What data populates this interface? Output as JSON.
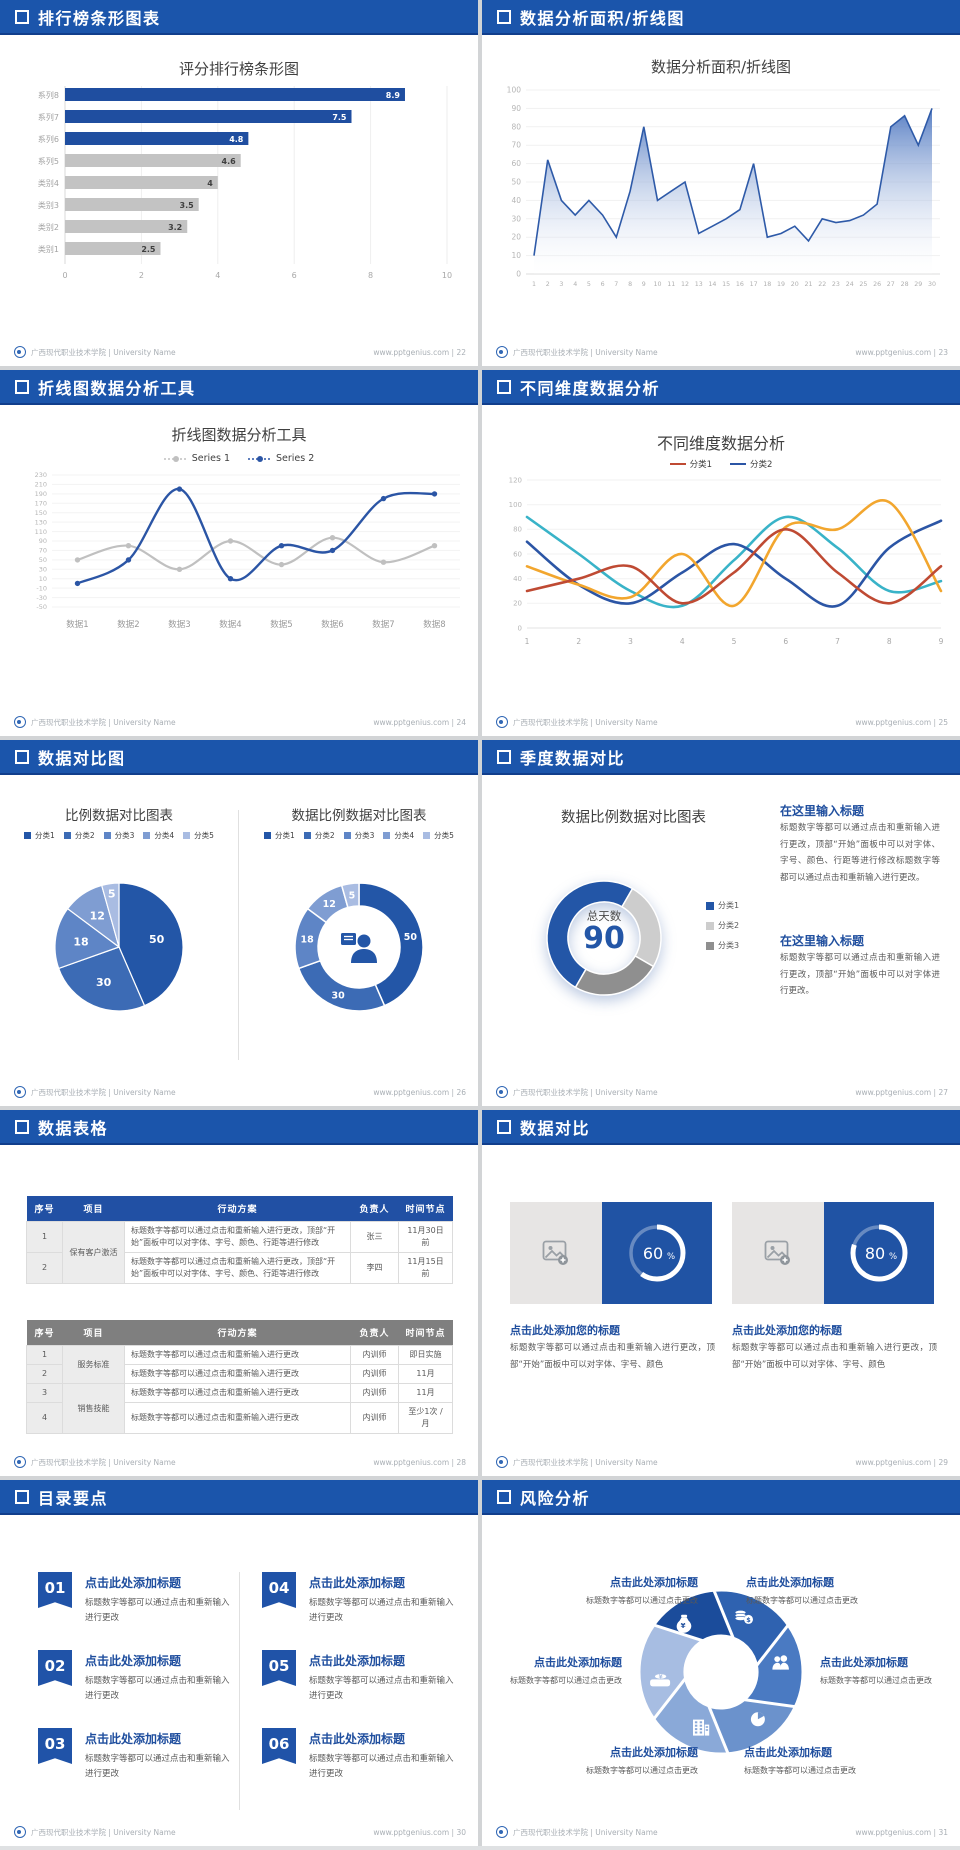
{
  "footer": {
    "org": "广西现代职业技术学院 | University Name",
    "site": "www.pptgenius.com"
  },
  "slides": [
    {
      "header": "排行榜条形图表",
      "page": "22",
      "chart_data": {
        "type": "bar",
        "orientation": "horizontal",
        "title": "评分排行榜条形图",
        "categories": [
          "系列8",
          "系列7",
          "系列6",
          "系列5",
          "类别4",
          "类别3",
          "类别2",
          "类别1"
        ],
        "values": [
          8.9,
          7.5,
          4.8,
          4.6,
          4,
          3.5,
          3.2,
          2.5
        ],
        "bar_colors": [
          "#1f4ea0",
          "#1f4ea0",
          "#1f4ea0",
          "#c3c3c3",
          "#c3c3c3",
          "#c3c3c3",
          "#c3c3c3",
          "#c3c3c3"
        ],
        "xlim": [
          0,
          10
        ],
        "xticks": [
          0,
          2,
          4,
          6,
          8,
          10
        ],
        "grid": true
      }
    },
    {
      "header": "数据分析面积/折线图",
      "page": "23",
      "chart_data": {
        "type": "area",
        "title": "数据分析面积/折线图",
        "x": [
          1,
          2,
          3,
          4,
          5,
          6,
          7,
          8,
          9,
          10,
          11,
          12,
          13,
          14,
          15,
          16,
          17,
          18,
          19,
          20,
          21,
          22,
          23,
          24,
          25,
          26,
          27,
          28,
          29,
          30
        ],
        "values": [
          10,
          62,
          40,
          32,
          40,
          32,
          20,
          45,
          80,
          40,
          45,
          50,
          22,
          26,
          30,
          35,
          60,
          20,
          22,
          26,
          18,
          30,
          28,
          29,
          32,
          38,
          80,
          86,
          70,
          90
        ],
        "ylim": [
          0,
          100
        ],
        "ytick_step": 10,
        "line_color": "#2e5aa8",
        "fill_top": "#4a74bf",
        "grid": true
      }
    },
    {
      "header": "折线图数据分析工具",
      "page": "24",
      "chart_data": {
        "type": "line",
        "title": "折线图数据分析工具",
        "categories": [
          "数据1",
          "数据2",
          "数据3",
          "数据4",
          "数据5",
          "数据6",
          "数据7",
          "数据8"
        ],
        "series": [
          {
            "name": "Series 1",
            "color": "#c0c0c0",
            "values": [
              50,
              80,
              30,
              90,
              40,
              97,
              45,
              80
            ]
          },
          {
            "name": "Series 2",
            "color": "#2b55a5",
            "values": [
              0,
              50,
              200,
              10,
              80,
              70,
              180,
              190
            ]
          }
        ],
        "ylim": [
          -50,
          230
        ],
        "ytick_step": 20,
        "markers": true,
        "legend_position": "top"
      }
    },
    {
      "header": "不同维度数据分析",
      "page": "25",
      "chart_data": {
        "type": "line",
        "title": "不同维度数据分析",
        "x": [
          1,
          2,
          3,
          4,
          5,
          6,
          7,
          8,
          9
        ],
        "legend": [
          {
            "name": "分类1",
            "color": "#bf4a33"
          },
          {
            "name": "分类2",
            "color": "#2b55a5"
          }
        ],
        "series": [
          {
            "name": "teal",
            "color": "#39b3c8",
            "values": [
              90,
              60,
              30,
              18,
              55,
              90,
              65,
              30,
              38
            ]
          },
          {
            "name": "navy",
            "color": "#2b55a5",
            "values": [
              70,
              35,
              20,
              45,
              68,
              40,
              18,
              65,
              87
            ]
          },
          {
            "name": "orange",
            "color": "#f2a62e",
            "values": [
              50,
              35,
              25,
              60,
              18,
              82,
              80,
              102,
              30
            ]
          },
          {
            "name": "red",
            "color": "#bf4a33",
            "values": [
              30,
              40,
              50,
              20,
              45,
              80,
              45,
              20,
              50
            ]
          }
        ],
        "ylim": [
          0,
          120
        ],
        "ytick_step": 20,
        "smooth": true
      }
    },
    {
      "header": "数据对比图",
      "page": "26",
      "chart_data": [
        {
          "type": "pie",
          "title": "比例数据对比图表",
          "labels": [
            "分类1",
            "分类2",
            "分类3",
            "分类4",
            "分类5"
          ],
          "values": [
            50,
            30,
            18,
            12,
            5
          ],
          "colors": [
            "#2356a7",
            "#3c6bb5",
            "#5e85c6",
            "#7f9dd2",
            "#a9bce2"
          ]
        },
        {
          "type": "pie",
          "subtype": "donut",
          "title": "数据比例数据对比图表",
          "labels": [
            "分类1",
            "分类2",
            "分类3",
            "分类4",
            "分类5"
          ],
          "values": [
            50,
            30,
            18,
            12,
            5
          ],
          "colors": [
            "#2356a7",
            "#3c6bb5",
            "#5e85c6",
            "#7f9dd2",
            "#a9bce2"
          ],
          "center_icon": "presenter-person-icon"
        }
      ]
    },
    {
      "header": "季度数据对比",
      "page": "27",
      "chart_data": {
        "type": "pie",
        "subtype": "donut",
        "title": "数据比例数据对比图表",
        "labels": [
          "分类1",
          "分类2",
          "分类3"
        ],
        "values": [
          50,
          25,
          25
        ],
        "colors": [
          "#2356a7",
          "#cdcdcd",
          "#8f8f8f"
        ],
        "center_label": "总天数",
        "center_value": "90"
      },
      "blocks": [
        {
          "title": "在这里输入标题",
          "body": "标题数字等都可以通过点击和重新输入进行更改，顶部“开始”面板中可以对字体、字号、颜色、行距等进行修改标题数字等都可以通过点击和重新输入进行更改。"
        },
        {
          "title": "在这里输入标题",
          "body": "标题数字等都可以通过点击和重新输入进行更改，顶部“开始”面板中可以对字体进行更改。"
        }
      ]
    },
    {
      "header": "数据表格",
      "page": "28",
      "tables": [
        {
          "theme": "blue",
          "headers": [
            "序号",
            "项目",
            "行动方案",
            "负责人",
            "时间节点"
          ],
          "projects": [
            {
              "label": "保有客户激活",
              "rows": 2
            }
          ],
          "rows": [
            {
              "no": "1",
              "plan": "标题数字等都可以通过点击和重新输入进行更改，顶部“开始”面板中可以对字体、字号、颜色、行距等进行修改",
              "owner": "张三",
              "time": "11月30日前"
            },
            {
              "no": "2",
              "plan": "标题数字等都可以通过点击和重新输入进行更改，顶部“开始”面板中可以对字体、字号、颜色、行距等进行修改",
              "owner": "李四",
              "time": "11月15日前"
            }
          ]
        },
        {
          "theme": "gray",
          "headers": [
            "序号",
            "项目",
            "行动方案",
            "负责人",
            "时间节点"
          ],
          "projects": [
            {
              "label": "服务标准",
              "rows": 2
            },
            {
              "label": "销售技能",
              "rows": 2
            }
          ],
          "rows": [
            {
              "no": "1",
              "plan": "标题数字等都可以通过点击和重新输入进行更改",
              "owner": "内训师",
              "time": "即日实施"
            },
            {
              "no": "2",
              "plan": "标题数字等都可以通过点击和重新输入进行更改",
              "owner": "内训师",
              "time": "11月"
            },
            {
              "no": "3",
              "plan": "标题数字等都可以通过点击和重新输入进行更改",
              "owner": "内训师",
              "time": "11月"
            },
            {
              "no": "4",
              "plan": "标题数字等都可以通过点击和重新输入进行更改",
              "owner": "内训师",
              "time": "至少1次 /月"
            }
          ]
        }
      ]
    },
    {
      "header": "数据对比",
      "page": "29",
      "cards": [
        {
          "percent": 60,
          "percent_label": "60",
          "title": "点击此处添加您的标题",
          "body": "标题数字等都可以通过点击和重新输入进行更改，顶部“开始”面板中可以对字体、字号、颜色"
        },
        {
          "percent": 80,
          "percent_label": "80",
          "title": "点击此处添加您的标题",
          "body": "标题数字等都可以通过点击和重新输入进行更改，顶部“开始”面板中可以对字体、字号、颜色"
        }
      ]
    },
    {
      "header": "目录要点",
      "page": "30",
      "items": [
        {
          "num": "01",
          "title": "点击此处添加标题",
          "body": "标题数字等都可以通过点击和重新输入进行更改"
        },
        {
          "num": "02",
          "title": "点击此处添加标题",
          "body": "标题数字等都可以通过点击和重新输入进行更改"
        },
        {
          "num": "03",
          "title": "点击此处添加标题",
          "body": "标题数字等都可以通过点击和重新输入进行更改"
        },
        {
          "num": "04",
          "title": "点击此处添加标题",
          "body": "标题数字等都可以通过点击和重新输入进行更改"
        },
        {
          "num": "05",
          "title": "点击此处添加标题",
          "body": "标题数字等都可以通过点击和重新输入进行更改"
        },
        {
          "num": "06",
          "title": "点击此处添加标题",
          "body": "标题数字等都可以通过点击和重新输入进行更改"
        }
      ]
    },
    {
      "header": "风险分析",
      "page": "31",
      "items": [
        {
          "pos": "top-left",
          "icon": "moneybag-icon",
          "title": "点击此处添加标题",
          "body": "标题数字等都可以通过点击更改"
        },
        {
          "pos": "top-right",
          "icon": "coins-icon",
          "title": "点击此处添加标题",
          "body": "标题数字等都可以通过点击更改"
        },
        {
          "pos": "mid-left",
          "icon": "cash-pile-icon",
          "title": "点击此处添加标题",
          "body": "标题数字等都可以通过点击更改"
        },
        {
          "pos": "mid-right",
          "icon": "people-icon",
          "title": "点击此处添加标题",
          "body": "标题数字等都可以通过点击更改"
        },
        {
          "pos": "bottom-left",
          "icon": "building-icon",
          "title": "点击此处添加标题",
          "body": "标题数字等都可以通过点击更改"
        },
        {
          "pos": "bottom-right",
          "icon": "pie-chart-icon",
          "title": "点击此处添加标题",
          "body": "标题数字等都可以通过点击更改"
        }
      ],
      "wheel_colors": [
        "#1b4c9b",
        "#2f62b0",
        "#4a7ac2",
        "#6b92cc",
        "#8aa9d8",
        "#a7bde2"
      ]
    }
  ]
}
